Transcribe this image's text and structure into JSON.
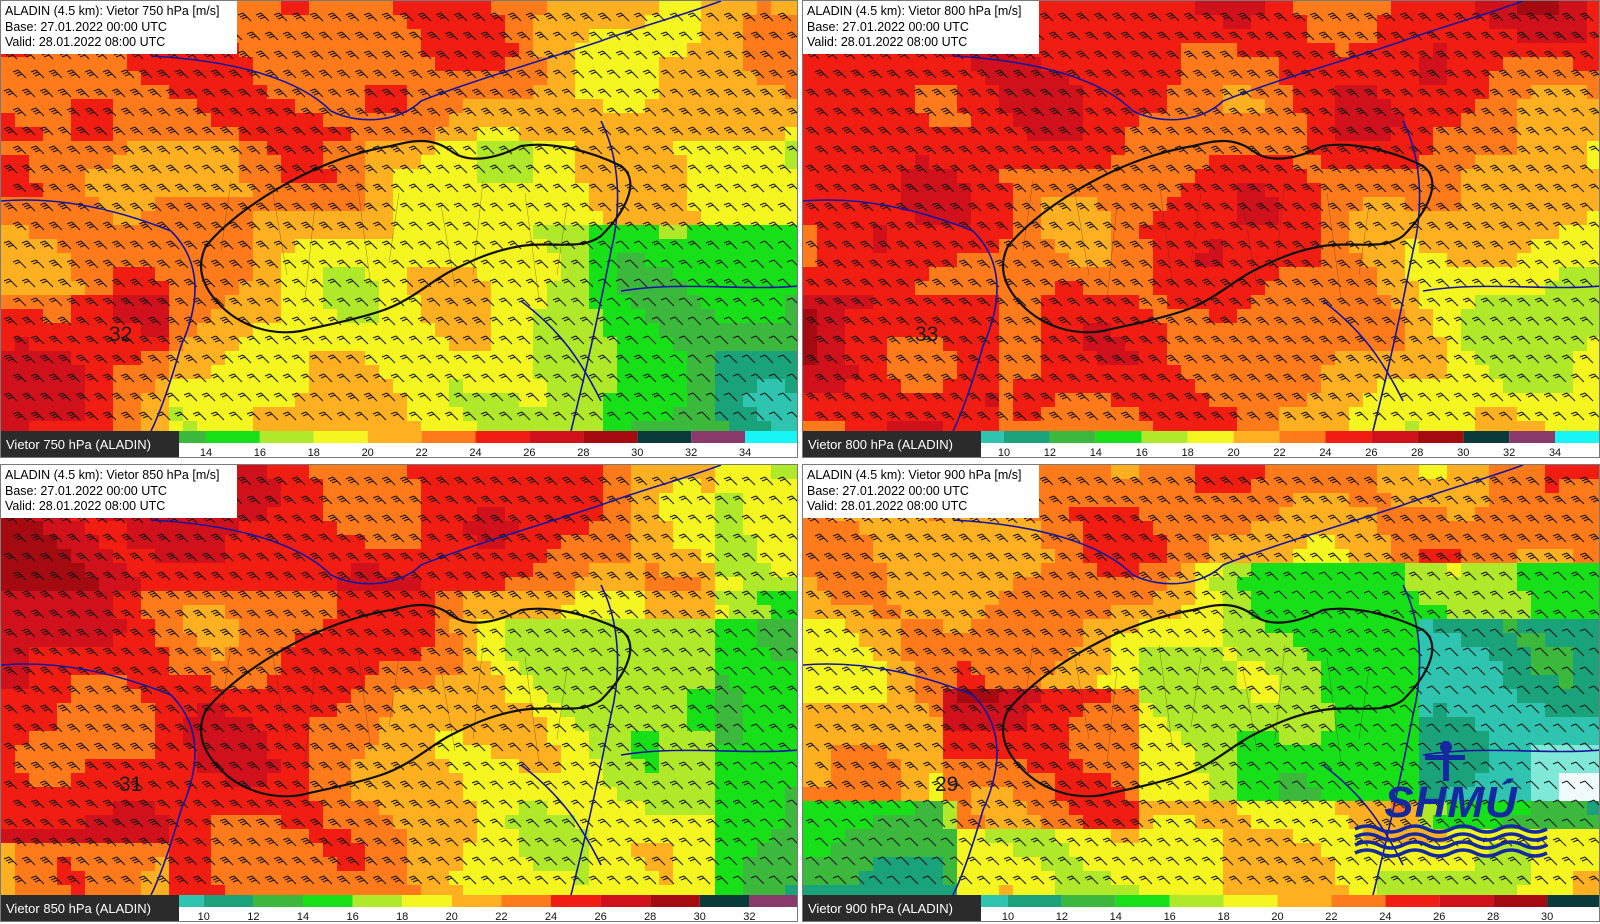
{
  "panels": [
    {
      "title_lines": [
        "ALADIN (4.5 km): Vietor 750 hPa [m/s]",
        "Base: 27.01.2022 00:00 UTC",
        "Valid: 28.01.2022 08:00 UTC"
      ],
      "legend_label": "Vietor 750 hPa (ALADIN)",
      "peak_value": "32",
      "legend_ticks": [
        "14",
        "16",
        "18",
        "20",
        "22",
        "24",
        "26",
        "28",
        "30",
        "32",
        "34"
      ]
    },
    {
      "title_lines": [
        "ALADIN (4.5 km): Vietor 800 hPa [m/s]",
        "Base: 27.01.2022 00:00 UTC",
        "Valid: 28.01.2022 08:00 UTC"
      ],
      "legend_label": "Vietor 800 hPa (ALADIN)",
      "peak_value": "33",
      "legend_ticks": [
        "10",
        "12",
        "14",
        "16",
        "18",
        "20",
        "22",
        "24",
        "26",
        "28",
        "30",
        "32",
        "34"
      ]
    },
    {
      "title_lines": [
        "ALADIN (4.5 km): Vietor 850 hPa [m/s]",
        "Base: 27.01.2022 00:00 UTC",
        "Valid: 28.01.2022 08:00 UTC"
      ],
      "legend_label": "Vietor 850 hPa (ALADIN)",
      "peak_value": "31",
      "legend_ticks": [
        "10",
        "12",
        "14",
        "16",
        "18",
        "20",
        "22",
        "24",
        "26",
        "28",
        "30",
        "32"
      ]
    },
    {
      "title_lines": [
        "ALADIN (4.5 km): Vietor 900 hPa [m/s]",
        "Base: 27.01.2022 00:00 UTC",
        "Valid: 28.01.2022 08:00 UTC"
      ],
      "legend_label": "Vietor 900 hPa (ALADIN)",
      "peak_value": "29",
      "legend_ticks": [
        "10",
        "12",
        "14",
        "16",
        "18",
        "20",
        "22",
        "24",
        "26",
        "28",
        "30"
      ]
    }
  ],
  "logo_text": "SHMÚ",
  "colors": {
    "scale": [
      "#f2fbfb",
      "#7fe8d6",
      "#2ec4b0",
      "#1aa37a",
      "#3cb83c",
      "#18e018",
      "#b0e82a",
      "#f5f520",
      "#ffb020",
      "#ff7a1a",
      "#f21d12",
      "#d0101a",
      "#a50a10",
      "#0b3a3a",
      "#8a3a6a",
      "#17f5f5"
    ],
    "border_country": "#111111",
    "border_neighbor": "#1515a0",
    "logo_blue": "#1428a0"
  }
}
